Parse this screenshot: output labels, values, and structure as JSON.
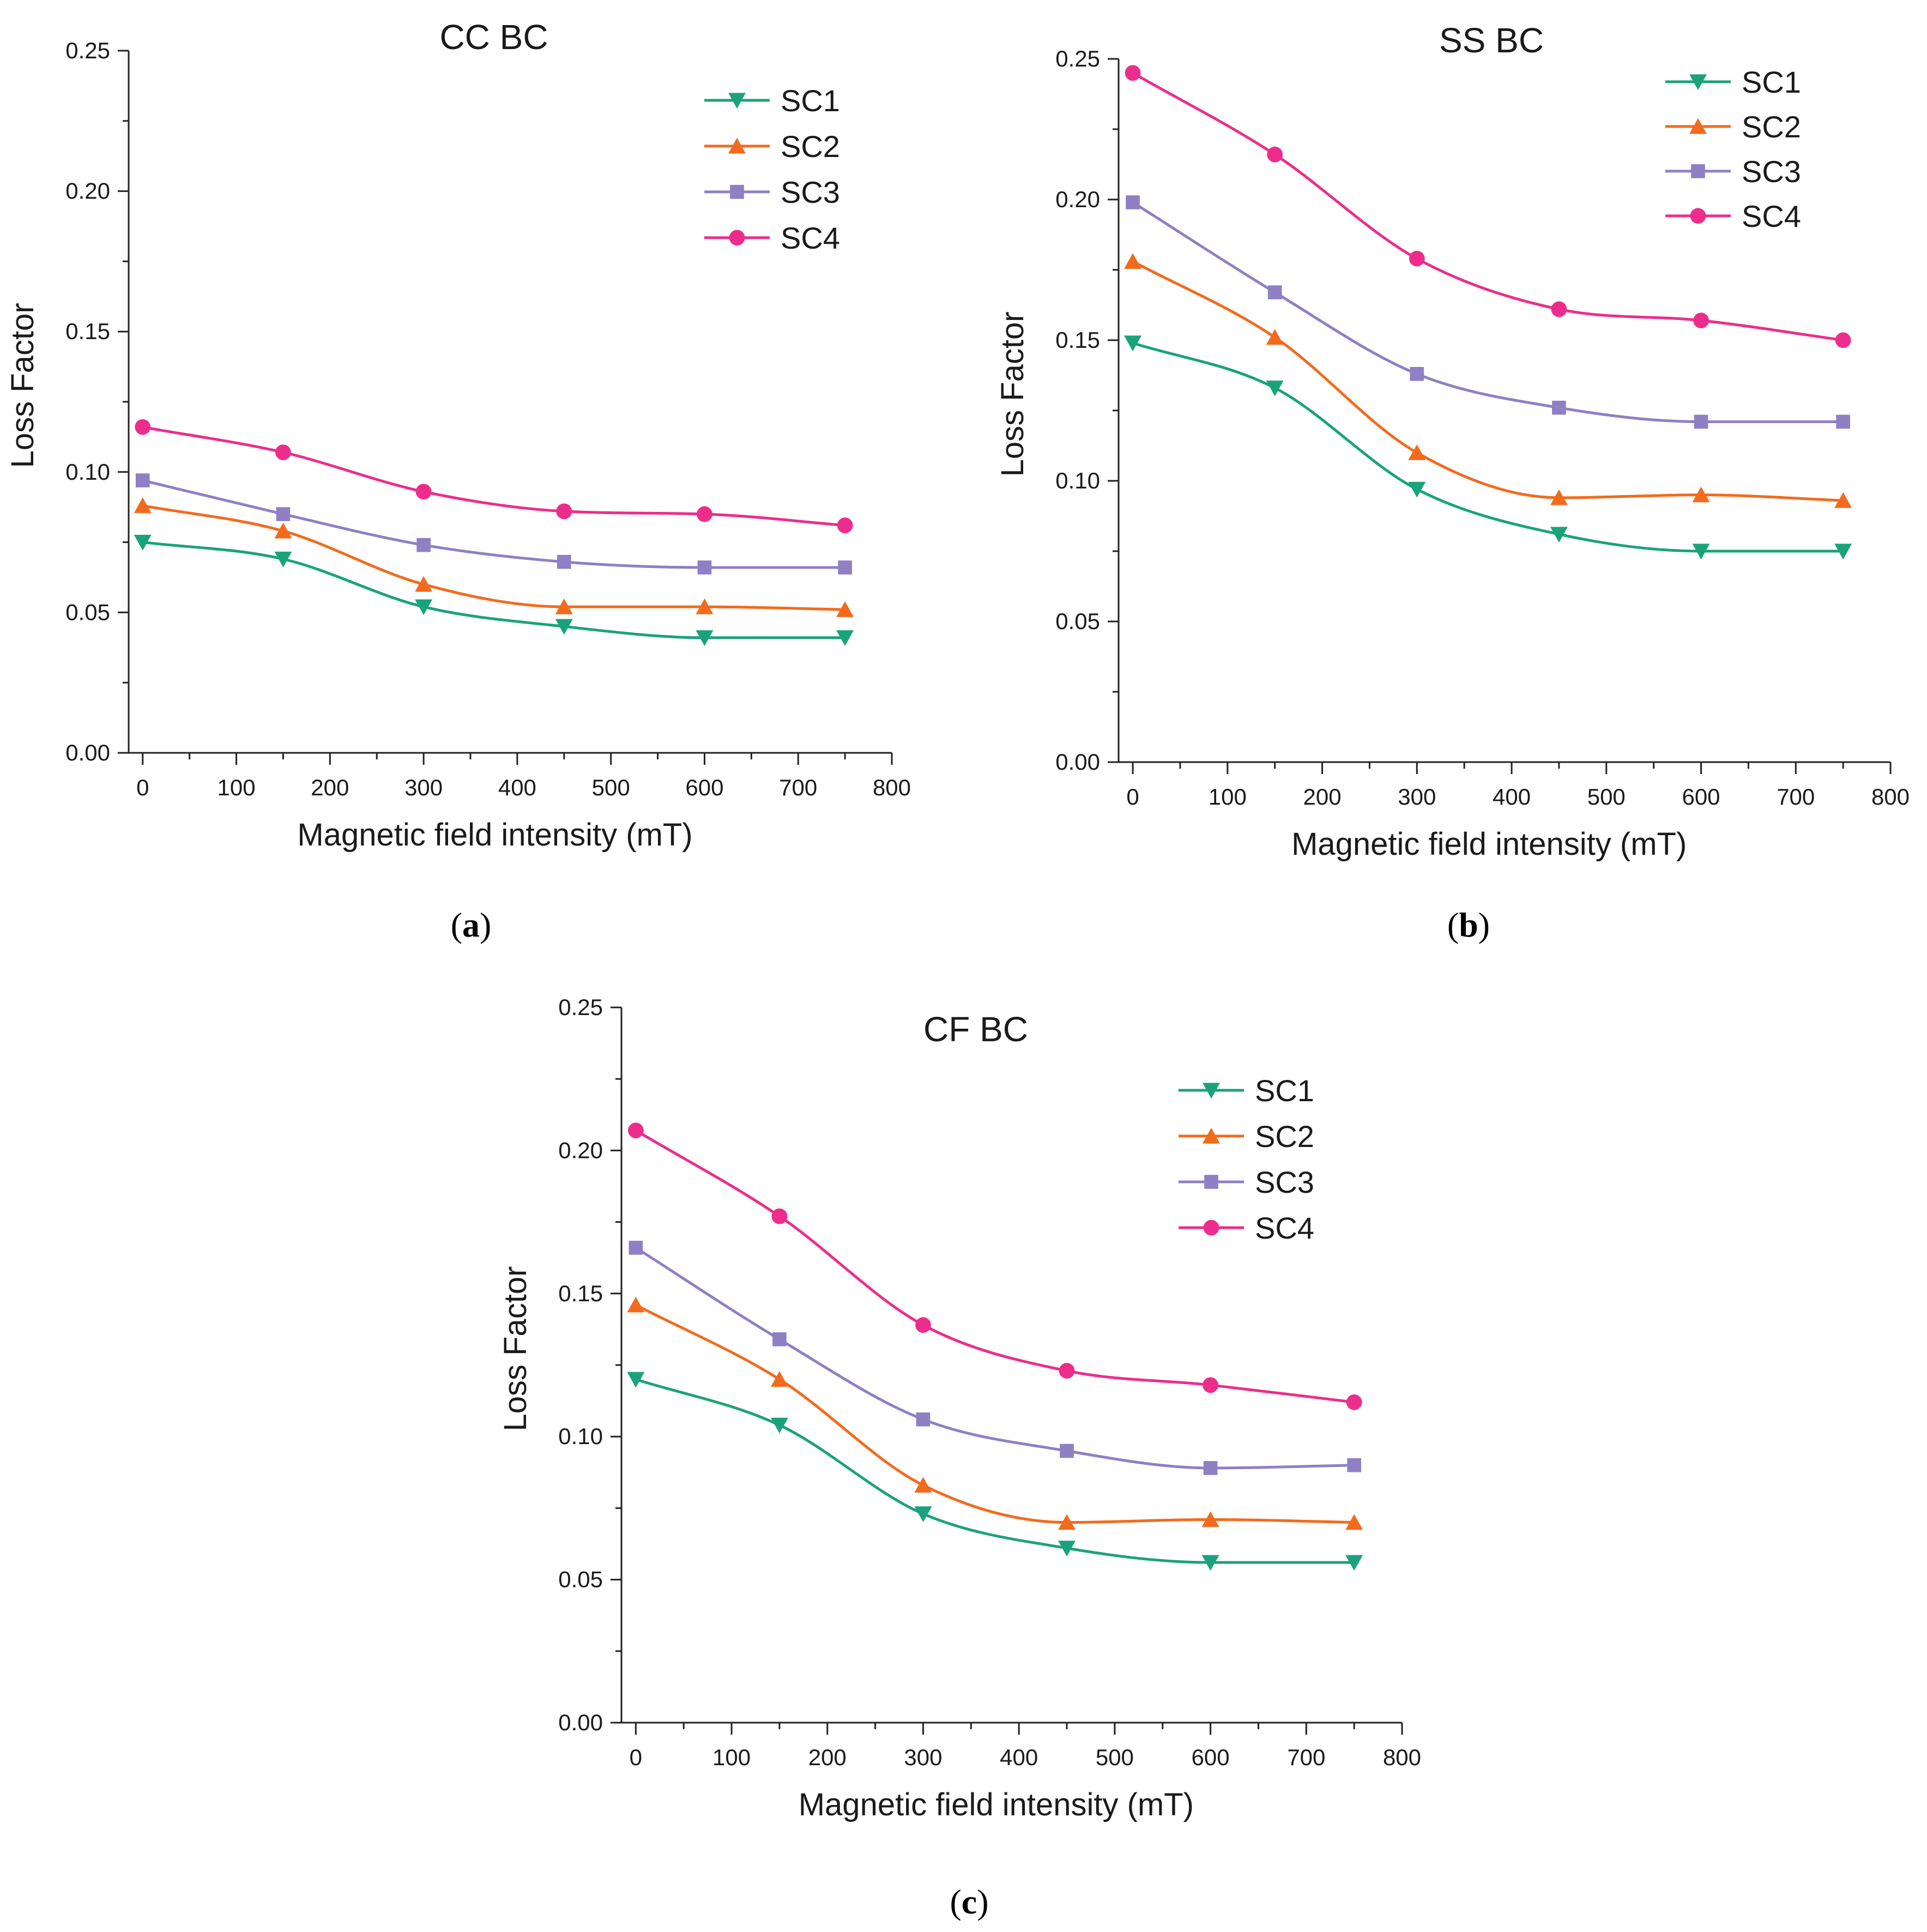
{
  "chart_data": [
    {
      "id": "a",
      "type": "line",
      "title": "CC BC",
      "caption_letter": "a",
      "xlabel": "Magnetic field intensity (mT)",
      "ylabel": "Loss Factor",
      "xlim": [
        -15,
        800
      ],
      "ylim": [
        0,
        0.25
      ],
      "xticks": [
        "0",
        "100",
        "200",
        "300",
        "400",
        "500",
        "600",
        "700",
        "800"
      ],
      "yticks": [
        "0.00",
        "0.05",
        "0.10",
        "0.15",
        "0.20",
        "0.25"
      ],
      "x": [
        0,
        150,
        300,
        450,
        600,
        750
      ],
      "legend_position": "top-right",
      "series": [
        {
          "name": "SC1",
          "color": "#1aa37a",
          "marker": "triangle-down",
          "values": [
            0.075,
            0.069,
            0.052,
            0.045,
            0.041,
            0.041
          ]
        },
        {
          "name": "SC2",
          "color": "#f26b1d",
          "marker": "triangle-up",
          "values": [
            0.088,
            0.079,
            0.06,
            0.052,
            0.052,
            0.051
          ]
        },
        {
          "name": "SC3",
          "color": "#8f7fc4",
          "marker": "square",
          "values": [
            0.097,
            0.085,
            0.074,
            0.068,
            0.066,
            0.066
          ]
        },
        {
          "name": "SC4",
          "color": "#ec2d8c",
          "marker": "circle",
          "values": [
            0.116,
            0.107,
            0.093,
            0.086,
            0.085,
            0.081
          ]
        }
      ]
    },
    {
      "id": "b",
      "type": "line",
      "title": "SS BC",
      "caption_letter": "b",
      "xlabel": "Magnetic field intensity (mT)",
      "ylabel": "Loss Factor",
      "xlim": [
        -15,
        800
      ],
      "ylim": [
        0,
        0.25
      ],
      "xticks": [
        "0",
        "100",
        "200",
        "300",
        "400",
        "500",
        "600",
        "700",
        "800"
      ],
      "yticks": [
        "0.00",
        "0.05",
        "0.10",
        "0.15",
        "0.20",
        "0.25"
      ],
      "x": [
        0,
        150,
        300,
        450,
        600,
        750
      ],
      "legend_position": "top-right",
      "series": [
        {
          "name": "SC1",
          "color": "#1aa37a",
          "marker": "triangle-down",
          "values": [
            0.149,
            0.133,
            0.097,
            0.081,
            0.075,
            0.075
          ]
        },
        {
          "name": "SC2",
          "color": "#f26b1d",
          "marker": "triangle-up",
          "values": [
            0.178,
            0.151,
            0.11,
            0.094,
            0.095,
            0.093
          ]
        },
        {
          "name": "SC3",
          "color": "#8f7fc4",
          "marker": "square",
          "values": [
            0.199,
            0.167,
            0.138,
            0.126,
            0.121,
            0.121
          ]
        },
        {
          "name": "SC4",
          "color": "#ec2d8c",
          "marker": "circle",
          "values": [
            0.245,
            0.216,
            0.179,
            0.161,
            0.157,
            0.15
          ]
        }
      ]
    },
    {
      "id": "c",
      "type": "line",
      "title": "CF BC",
      "caption_letter": "c",
      "xlabel": "Magnetic field intensity (mT)",
      "ylabel": "Loss Factor",
      "xlim": [
        -15,
        800
      ],
      "ylim": [
        0,
        0.25
      ],
      "xticks": [
        "0",
        "100",
        "200",
        "300",
        "400",
        "500",
        "600",
        "700",
        "800"
      ],
      "yticks": [
        "0.00",
        "0.05",
        "0.10",
        "0.15",
        "0.20",
        "0.25"
      ],
      "x": [
        0,
        150,
        300,
        450,
        600,
        750
      ],
      "legend_position": "top-right",
      "series": [
        {
          "name": "SC1",
          "color": "#1aa37a",
          "marker": "triangle-down",
          "values": [
            0.12,
            0.104,
            0.073,
            0.061,
            0.056,
            0.056
          ]
        },
        {
          "name": "SC2",
          "color": "#f26b1d",
          "marker": "triangle-up",
          "values": [
            0.146,
            0.12,
            0.083,
            0.07,
            0.071,
            0.07
          ]
        },
        {
          "name": "SC3",
          "color": "#8f7fc4",
          "marker": "square",
          "values": [
            0.166,
            0.134,
            0.106,
            0.095,
            0.089,
            0.09
          ]
        },
        {
          "name": "SC4",
          "color": "#ec2d8c",
          "marker": "circle",
          "values": [
            0.207,
            0.177,
            0.139,
            0.123,
            0.118,
            0.112
          ]
        }
      ]
    }
  ]
}
